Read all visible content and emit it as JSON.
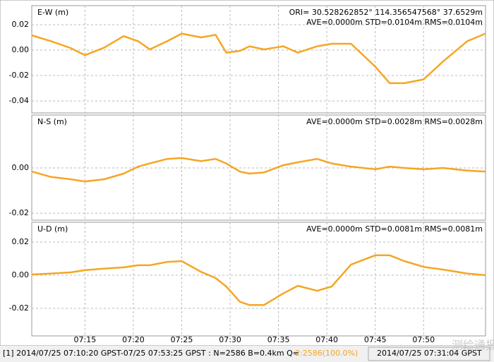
{
  "chart_data": [
    {
      "type": "line",
      "title": "E-W (m)",
      "annotations": [
        "ORI= 30.528262852°  114.356547568° 37.6529m",
        "AVE=0.0000m STD=0.0104m RMS=0.0104m"
      ],
      "x": [
        9.5,
        11.5,
        13.5,
        15,
        17,
        19,
        20.5,
        21.7,
        23.5,
        25,
        27,
        28.5,
        29.6,
        31,
        32,
        33.5,
        35.5,
        37,
        39,
        40.5,
        42.5,
        45,
        46.5,
        48,
        50,
        52,
        54.5,
        56.4
      ],
      "values": [
        0.0117,
        0.007,
        0.0017,
        -0.004,
        0.002,
        0.011,
        0.007,
        0.0006,
        0.007,
        0.013,
        0.01,
        0.012,
        -0.002,
        -0.0006,
        0.003,
        0.0006,
        0.003,
        -0.002,
        0.003,
        0.005,
        0.005,
        -0.013,
        -0.026,
        -0.026,
        -0.023,
        -0.009,
        0.007,
        0.013
      ],
      "color": "#f5a623",
      "xlim": [
        9.5,
        56.4
      ],
      "xticks": [
        15,
        20,
        25,
        30,
        35,
        40,
        45,
        50
      ],
      "ylim": [
        -0.0494,
        0.035
      ],
      "yticks": [
        0.02,
        {
          "value": 0,
          "label": "0.00"
        },
        -0.02,
        -0.04
      ],
      "grid": true
    },
    {
      "type": "line",
      "title": "N-S (m)",
      "annotations": [
        "AVE=0.0000m STD=0.0028m RMS=0.0028m"
      ],
      "x": [
        9.5,
        11.5,
        13.5,
        15,
        17,
        19,
        20.5,
        21.7,
        23.5,
        25,
        27,
        28.5,
        29.6,
        31,
        32,
        33.5,
        35.5,
        37,
        39,
        40.5,
        42.5,
        45,
        46.5,
        48,
        50,
        52,
        54.5,
        56.4
      ],
      "values": [
        -0.0016,
        -0.004,
        -0.005,
        -0.006,
        -0.005,
        -0.0025,
        0.0006,
        0.002,
        0.004,
        0.0044,
        0.003,
        0.004,
        0.002,
        -0.0016,
        -0.0025,
        -0.002,
        0.0012,
        0.0025,
        0.004,
        0.002,
        0.0006,
        -0.0006,
        0.0006,
        0,
        -0.0006,
        0,
        -0.0012,
        -0.0016
      ],
      "color": "#f5a623",
      "xlim": [
        9.5,
        56.4
      ],
      "xticks": [
        15,
        20,
        25,
        30,
        35,
        40,
        45,
        50
      ],
      "ylim": [
        -0.0231,
        0.0234
      ],
      "yticks": [
        {
          "value": 0,
          "label": "0.00"
        },
        -0.02
      ],
      "grid": true
    },
    {
      "type": "line",
      "title": "U-D (m)",
      "annotations": [
        "AVE=0.0000m STD=0.0081m RMS=0.0081m"
      ],
      "x": [
        9.5,
        11.5,
        13.5,
        15,
        17,
        19,
        20.5,
        21.7,
        23.5,
        25,
        27,
        28.5,
        29.6,
        31,
        32,
        33.5,
        35.5,
        37,
        39,
        40.5,
        42.5,
        45,
        46.5,
        48,
        50,
        52,
        54.5,
        56.4
      ],
      "values": [
        0.0004,
        0.001,
        0.0017,
        0.003,
        0.004,
        0.0047,
        0.006,
        0.006,
        0.008,
        0.0085,
        0.002,
        -0.0017,
        -0.0068,
        -0.016,
        -0.018,
        -0.018,
        -0.011,
        -0.0064,
        -0.0094,
        -0.0068,
        0.0064,
        0.012,
        0.012,
        0.0085,
        0.005,
        0.0034,
        0.001,
        0
      ],
      "color": "#f5a623",
      "xlim": [
        9.5,
        56.4
      ],
      "xticks": [
        {
          "value": 15,
          "label": "07:15"
        },
        {
          "value": 20,
          "label": "07:20"
        },
        {
          "value": 25,
          "label": "07:25"
        },
        {
          "value": 30,
          "label": "07:30"
        },
        {
          "value": 35,
          "label": "07:35"
        },
        {
          "value": 40,
          "label": "07:40"
        },
        {
          "value": 45,
          "label": "07:45"
        },
        {
          "value": 50,
          "label": "07:50"
        }
      ],
      "ylim": [
        -0.0366,
        0.0319
      ],
      "yticks": [
        0.02,
        {
          "value": 0,
          "label": "0.00"
        },
        -0.02
      ],
      "grid": true
    }
  ],
  "status_bar": {
    "info": "[1] 2014/07/25 07:10:20 GPST-07/25 07:53:25 GPST : N=2586 B=0.4km Q=",
    "quality": "2:2586(100.0%)",
    "cursor_time": "2014/07/25 07:31:04 GPST"
  },
  "watermark": "测绘通报"
}
